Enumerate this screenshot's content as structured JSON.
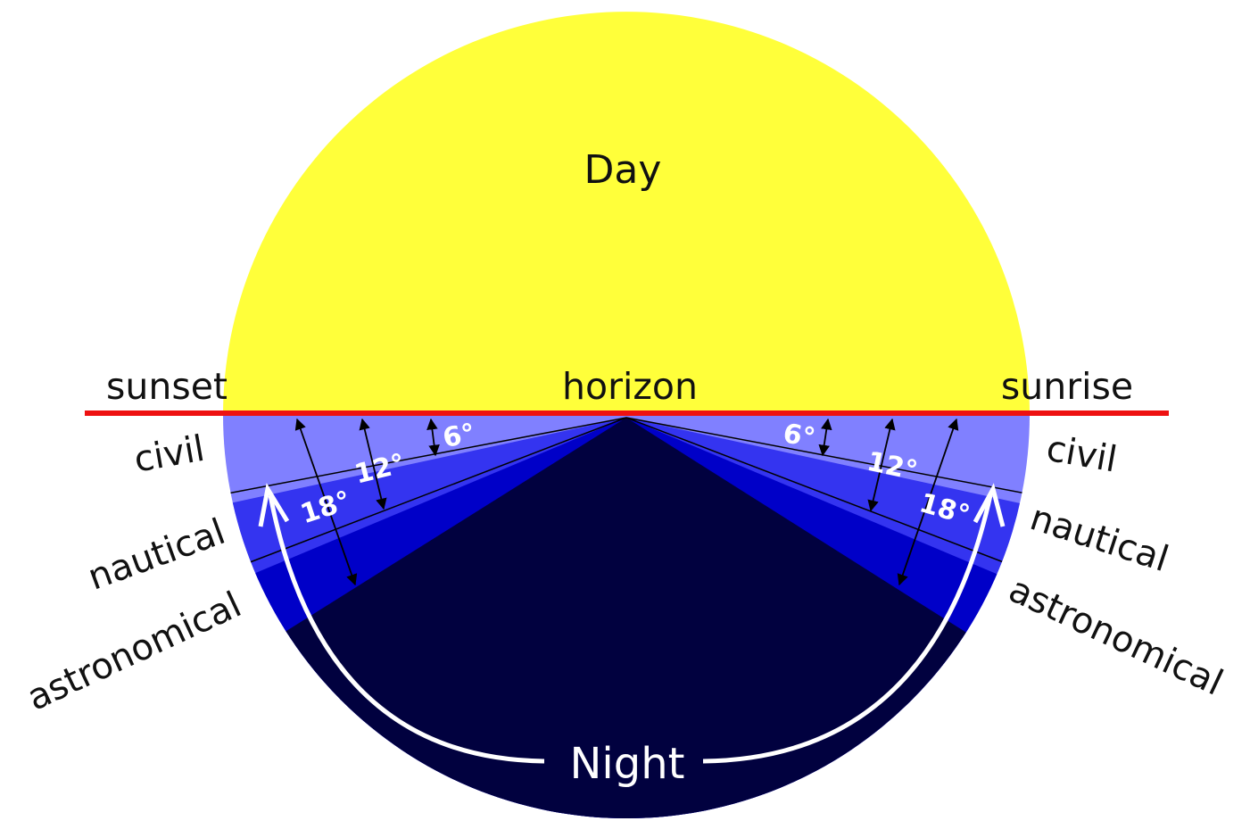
{
  "labels": {
    "day": "Day",
    "night": "Night",
    "horizon": "horizon",
    "sunset": "sunset",
    "sunrise": "sunrise",
    "left_civil": "civil",
    "left_nautical": "nautical",
    "left_astronomical": "astronomical",
    "right_civil": "civil",
    "right_nautical": "nautical",
    "right_astronomical": "astronomical"
  },
  "angles": {
    "left_6": "6°",
    "left_12": "12°",
    "left_18": "18°",
    "right_6": "6°",
    "right_12": "12°",
    "right_18": "18°"
  },
  "colors": {
    "day": "#ffff3a",
    "civil": "#8080ff",
    "nautical": "#3434f0",
    "astronomical": "#0000c8",
    "night": "#01013f",
    "horizon_line": "#ee1111"
  }
}
